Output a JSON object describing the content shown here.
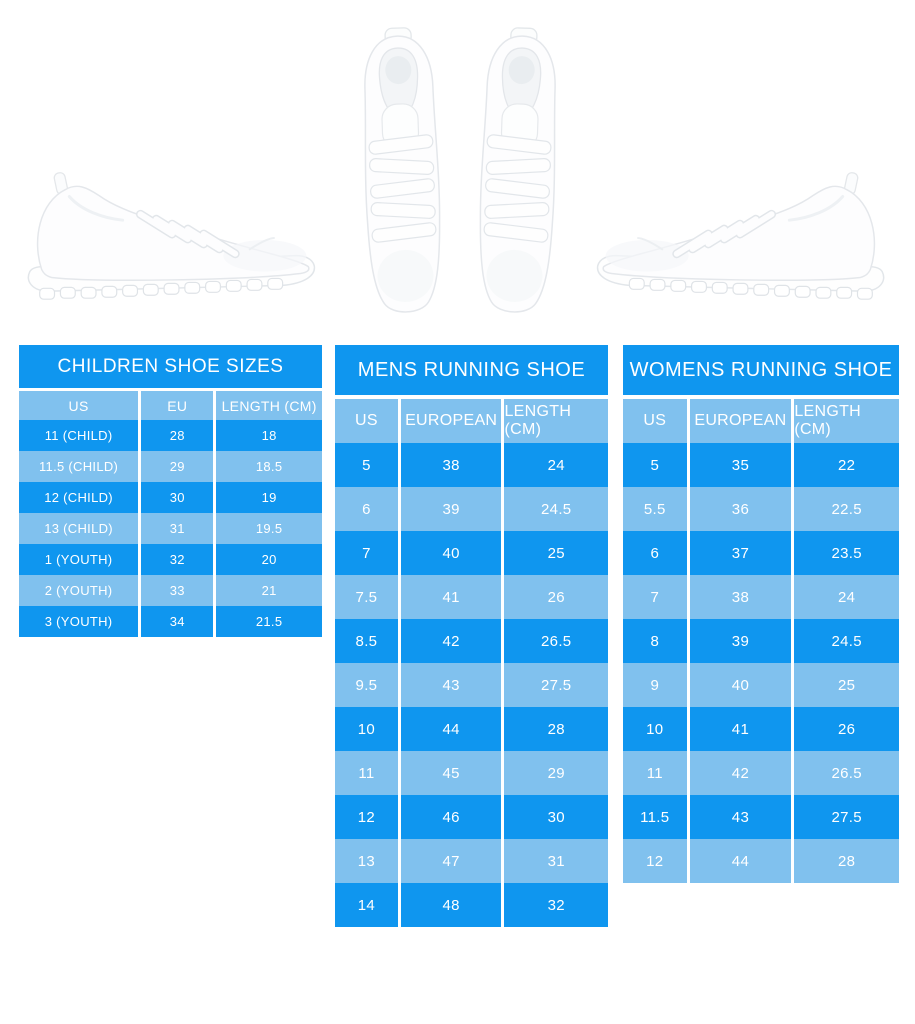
{
  "colors": {
    "background": "#ffffff",
    "row_dark": "#0f96ef",
    "row_light": "#80c1ee",
    "table_text": "#ffffff"
  },
  "images": {
    "left": "white-sneaker-side-view-icon",
    "center": "white-sneakers-pair-top-view-icon",
    "right": "white-sneaker-side-view-mirrored-icon"
  },
  "chart_data": [
    {
      "type": "table",
      "title": "CHILDREN SHOE SIZES",
      "columns": [
        "US",
        "EU",
        "LENGTH (CM)"
      ],
      "rows": [
        [
          "11 (CHILD)",
          "28",
          "18"
        ],
        [
          "11.5 (CHILD)",
          "29",
          "18.5"
        ],
        [
          "12 (CHILD)",
          "30",
          "19"
        ],
        [
          "13 (CHILD)",
          "31",
          "19.5"
        ],
        [
          "1 (YOUTH)",
          "32",
          "20"
        ],
        [
          "2 (YOUTH)",
          "33",
          "21"
        ],
        [
          "3 (YOUTH)",
          "34",
          "21.5"
        ]
      ]
    },
    {
      "type": "table",
      "title": "MENS RUNNING SHOE",
      "columns": [
        "US",
        "EUROPEAN",
        "LENGTH (CM)"
      ],
      "rows": [
        [
          "5",
          "38",
          "24"
        ],
        [
          "6",
          "39",
          "24.5"
        ],
        [
          "7",
          "40",
          "25"
        ],
        [
          "7.5",
          "41",
          "26"
        ],
        [
          "8.5",
          "42",
          "26.5"
        ],
        [
          "9.5",
          "43",
          "27.5"
        ],
        [
          "10",
          "44",
          "28"
        ],
        [
          "11",
          "45",
          "29"
        ],
        [
          "12",
          "46",
          "30"
        ],
        [
          "13",
          "47",
          "31"
        ],
        [
          "14",
          "48",
          "32"
        ]
      ]
    },
    {
      "type": "table",
      "title": "WOMENS RUNNING SHOE",
      "columns": [
        "US",
        "EUROPEAN",
        "LENGTH (CM)"
      ],
      "rows": [
        [
          "5",
          "35",
          "22"
        ],
        [
          "5.5",
          "36",
          "22.5"
        ],
        [
          "6",
          "37",
          "23.5"
        ],
        [
          "7",
          "38",
          "24"
        ],
        [
          "8",
          "39",
          "24.5"
        ],
        [
          "9",
          "40",
          "25"
        ],
        [
          "10",
          "41",
          "26"
        ],
        [
          "11",
          "42",
          "26.5"
        ],
        [
          "11.5",
          "43",
          "27.5"
        ],
        [
          "12",
          "44",
          "28"
        ]
      ]
    }
  ]
}
